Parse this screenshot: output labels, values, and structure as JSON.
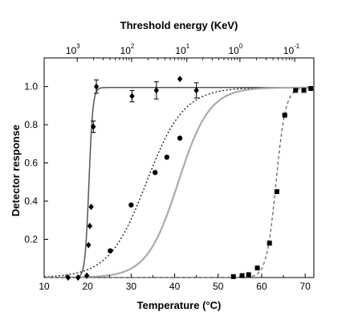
{
  "chart_data": {
    "type": "scatter",
    "title": "",
    "xlabel": "Temperature (°C)",
    "ylabel": "Detector response",
    "top_axis_label": "Threshold energy (KeV)",
    "xlim": [
      10,
      72
    ],
    "ylim": [
      0,
      1.15
    ],
    "x_ticks": [
      "10",
      "20",
      "30",
      "40",
      "50",
      "60",
      "70"
    ],
    "y_ticks": [
      "0.2",
      "0.4",
      "0.6",
      "0.8",
      "1.0"
    ],
    "top_ticks": [
      {
        "x": 17.6,
        "base": "10",
        "exp": "3"
      },
      {
        "x": 30.1,
        "base": "10",
        "exp": "2"
      },
      {
        "x": 42.8,
        "base": "10",
        "exp": "1"
      },
      {
        "x": 55.0,
        "base": "10",
        "exp": "0"
      },
      {
        "x": 67.6,
        "base": "10",
        "exp": "-1"
      }
    ],
    "grid": false,
    "series": [
      {
        "marker": "diamond",
        "curve": "solid-dark",
        "color": "#1a1a1a",
        "points": [
          {
            "x": 15.5,
            "y": 0.0
          },
          {
            "x": 17.8,
            "y": 0.0
          },
          {
            "x": 19.8,
            "y": 0.01
          },
          {
            "x": 20.2,
            "y": 0.17
          },
          {
            "x": 20.5,
            "y": 0.27
          },
          {
            "x": 20.8,
            "y": 0.37
          },
          {
            "x": 21.3,
            "y": 0.79,
            "err": 0.03
          },
          {
            "x": 22.0,
            "y": 1.0,
            "err": 0.035
          },
          {
            "x": 30.2,
            "y": 0.95,
            "err": 0.03
          },
          {
            "x": 35.8,
            "y": 0.98,
            "err": 0.045
          },
          {
            "x": 41.2,
            "y": 1.04,
            "err": 0.0
          },
          {
            "x": 45.0,
            "y": 0.98,
            "err": 0.04
          }
        ]
      },
      {
        "marker": "circle",
        "curve": "dotted",
        "color": "#1a1a1a",
        "points": [
          {
            "x": 25.2,
            "y": 0.14
          },
          {
            "x": 30.0,
            "y": 0.38
          },
          {
            "x": 35.5,
            "y": 0.55
          },
          {
            "x": 38.2,
            "y": 0.63
          },
          {
            "x": 41.2,
            "y": 0.73
          }
        ]
      },
      {
        "marker": "none",
        "curve": "solid-gray",
        "color": "#aaaaaa",
        "points": []
      },
      {
        "marker": "square",
        "curve": "dashed",
        "color": "#1a1a1a",
        "points": [
          {
            "x": 53.5,
            "y": 0.005
          },
          {
            "x": 55.5,
            "y": 0.01
          },
          {
            "x": 57.0,
            "y": 0.015
          },
          {
            "x": 59.0,
            "y": 0.05
          },
          {
            "x": 61.8,
            "y": 0.18
          },
          {
            "x": 63.5,
            "y": 0.45
          },
          {
            "x": 65.3,
            "y": 0.85
          },
          {
            "x": 67.8,
            "y": 0.98
          },
          {
            "x": 69.7,
            "y": 0.98
          },
          {
            "x": 71.3,
            "y": 0.99
          }
        ]
      }
    ]
  }
}
